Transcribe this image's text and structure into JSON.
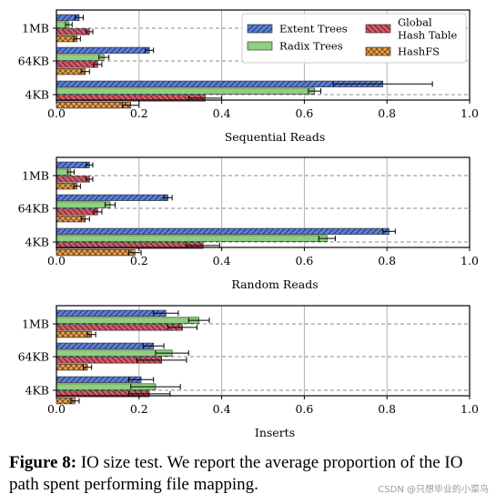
{
  "chart_data": [
    {
      "type": "bar",
      "orientation": "horizontal",
      "xlabel": "Sequential Reads",
      "xlim": [
        0,
        1.0
      ],
      "xticks": [
        "0.0",
        "0.2",
        "0.4",
        "0.6",
        "0.8",
        "1.0"
      ],
      "categories": [
        "1MB",
        "64KB",
        "4KB"
      ],
      "grid": "vertical",
      "legend": "top-right",
      "series": [
        {
          "name": "Extent Trees",
          "values": [
            0.055,
            0.225,
            0.79
          ],
          "errors": [
            0.01,
            0.01,
            0.12
          ]
        },
        {
          "name": "Radix Trees",
          "values": [
            0.03,
            0.115,
            0.625
          ],
          "errors": [
            0.008,
            0.012,
            0.015
          ]
        },
        {
          "name": "Global Hash Table",
          "values": [
            0.08,
            0.1,
            0.36
          ],
          "errors": [
            0.008,
            0.01,
            0.04
          ]
        },
        {
          "name": "HashFS",
          "values": [
            0.05,
            0.07,
            0.18
          ],
          "errors": [
            0.008,
            0.01,
            0.02
          ]
        }
      ]
    },
    {
      "type": "bar",
      "orientation": "horizontal",
      "xlabel": "Random Reads",
      "xlim": [
        0,
        1.0
      ],
      "xticks": [
        "0.0",
        "0.2",
        "0.4",
        "0.6",
        "0.8",
        "1.0"
      ],
      "categories": [
        "1MB",
        "64KB",
        "4KB"
      ],
      "grid": "vertical",
      "series": [
        {
          "name": "Extent Trees",
          "values": [
            0.08,
            0.27,
            0.805
          ],
          "errors": [
            0.008,
            0.01,
            0.015
          ]
        },
        {
          "name": "Radix Trees",
          "values": [
            0.035,
            0.13,
            0.655
          ],
          "errors": [
            0.008,
            0.012,
            0.02
          ]
        },
        {
          "name": "Global Hash Table",
          "values": [
            0.08,
            0.1,
            0.355
          ],
          "errors": [
            0.008,
            0.01,
            0.04
          ]
        },
        {
          "name": "HashFS",
          "values": [
            0.05,
            0.07,
            0.19
          ],
          "errors": [
            0.008,
            0.01,
            0.015
          ]
        }
      ]
    },
    {
      "type": "bar",
      "orientation": "horizontal",
      "xlabel": "Inserts",
      "xlim": [
        0,
        1.0
      ],
      "xticks": [
        "0.0",
        "0.2",
        "0.4",
        "0.6",
        "0.8",
        "1.0"
      ],
      "categories": [
        "1MB",
        "64KB",
        "4KB"
      ],
      "grid": "vertical",
      "series": [
        {
          "name": "Extent Trees",
          "values": [
            0.265,
            0.235,
            0.205
          ],
          "errors": [
            0.03,
            0.025,
            0.03
          ]
        },
        {
          "name": "Radix Trees",
          "values": [
            0.345,
            0.28,
            0.24
          ],
          "errors": [
            0.025,
            0.04,
            0.06
          ]
        },
        {
          "name": "Global Hash Table",
          "values": [
            0.305,
            0.255,
            0.225
          ],
          "errors": [
            0.035,
            0.06,
            0.05
          ]
        },
        {
          "name": "HashFS",
          "values": [
            0.085,
            0.075,
            0.045
          ],
          "errors": [
            0.01,
            0.01,
            0.01
          ]
        }
      ]
    }
  ],
  "legend": {
    "items": [
      {
        "label": "Extent Trees",
        "color": "#5b7fd4",
        "hatch": "diagonal"
      },
      {
        "label": "Radix Trees",
        "color": "#8fcf7d",
        "hatch": "none"
      },
      {
        "label": "Global\nHash Table",
        "color": "#cf5b66",
        "hatch": "back-diagonal"
      },
      {
        "label": "HashFS",
        "color": "#e8a151",
        "hatch": "cross"
      }
    ]
  },
  "colors": {
    "extent": "#5b7fd4",
    "radix": "#8fcf7d",
    "global": "#cf5b66",
    "hashfs": "#e8a151"
  },
  "caption": {
    "label": "Figure 8:",
    "text": " IO size test. We report the average proportion of the IO path spent performing file mapping."
  },
  "watermark": "CSDN @只想毕业的小菜鸟"
}
